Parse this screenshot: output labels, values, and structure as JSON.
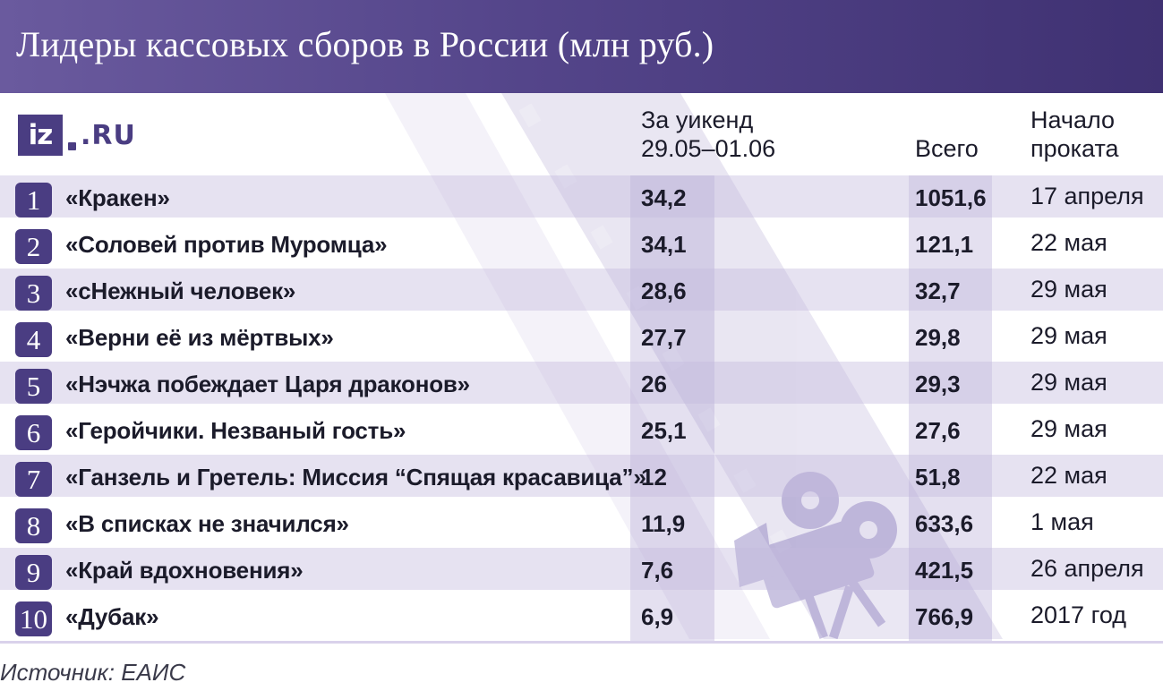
{
  "header": {
    "title": "Лидеры кассовых сборов в России (млн руб.)"
  },
  "logo": {
    "box_text": "iz",
    "suffix": ".RU"
  },
  "columns": {
    "weekend_line1": "За уикенд",
    "weekend_line2": "29.05–01.06",
    "total": "Всего",
    "start_line1": "Начало",
    "start_line2": "проката"
  },
  "rows": [
    {
      "rank": "1",
      "title": "«Кракен»",
      "weekend": "34,2",
      "total": "1051,6",
      "start": "17 апреля"
    },
    {
      "rank": "2",
      "title": "«Соловей против Муромца»",
      "weekend": "34,1",
      "total": "121,1",
      "start": "22 мая"
    },
    {
      "rank": "3",
      "title": "«сНежный человек»",
      "weekend": "28,6",
      "total": "32,7",
      "start": "29 мая"
    },
    {
      "rank": "4",
      "title": "«Верни её из мёртвых»",
      "weekend": "27,7",
      "total": "29,8",
      "start": "29 мая"
    },
    {
      "rank": "5",
      "title": "«Нэчжа побеждает Царя драконов»",
      "weekend": "26",
      "total": "29,3",
      "start": "29 мая"
    },
    {
      "rank": "6",
      "title": "«Геройчики. Незваный гость»",
      "weekend": "25,1",
      "total": "27,6",
      "start": "29 мая"
    },
    {
      "rank": "7",
      "title": "«Ганзель и Гретель: Миссия “Спящая красавица”»",
      "weekend": "12",
      "total": "51,8",
      "start": "22 мая"
    },
    {
      "rank": "8",
      "title": "«В списках не значился»",
      "weekend": "11,9",
      "total": "633,6",
      "start": "1 мая"
    },
    {
      "rank": "9",
      "title": "«Край вдохновения»",
      "weekend": "7,6",
      "total": "421,5",
      "start": "26 апреля"
    },
    {
      "rank": "10",
      "title": "«Дубак»",
      "weekend": "6,9",
      "total": "766,9",
      "start": "2017 год"
    }
  ],
  "source": "Источник: ЕАИС",
  "colors": {
    "accent": "#4a3d82",
    "header_start": "#6a5a9e",
    "header_end": "#3f3172",
    "stripe": "#e4def0"
  },
  "icons": [
    "film-strip-icon",
    "movie-camera-icon"
  ],
  "chart_data": {
    "type": "table",
    "title": "Лидеры кассовых сборов в России (млн руб.)",
    "columns": [
      "За уикенд 29.05–01.06",
      "Всего",
      "Начало проката"
    ],
    "categories": [
      "«Кракен»",
      "«Соловей против Муромца»",
      "«сНежный человек»",
      "«Верни её из мёртвых»",
      "«Нэчжа побеждает Царя драконов»",
      "«Геройчики. Незваный гость»",
      "«Ганзель и Гретель: Миссия “Спящая красавица”»",
      "«В списках не значился»",
      "«Край вдохновения»",
      "«Дубак»"
    ],
    "series": [
      {
        "name": "За уикенд 29.05–01.06",
        "values": [
          34.2,
          34.1,
          28.6,
          27.7,
          26,
          25.1,
          12,
          11.9,
          7.6,
          6.9
        ]
      },
      {
        "name": "Всего",
        "values": [
          1051.6,
          121.1,
          32.7,
          29.8,
          29.3,
          27.6,
          51.8,
          633.6,
          421.5,
          766.9
        ]
      }
    ],
    "start_dates": [
      "17 апреля",
      "22 мая",
      "29 мая",
      "29 мая",
      "29 мая",
      "29 мая",
      "22 мая",
      "1 мая",
      "26 апреля",
      "2017 год"
    ]
  }
}
